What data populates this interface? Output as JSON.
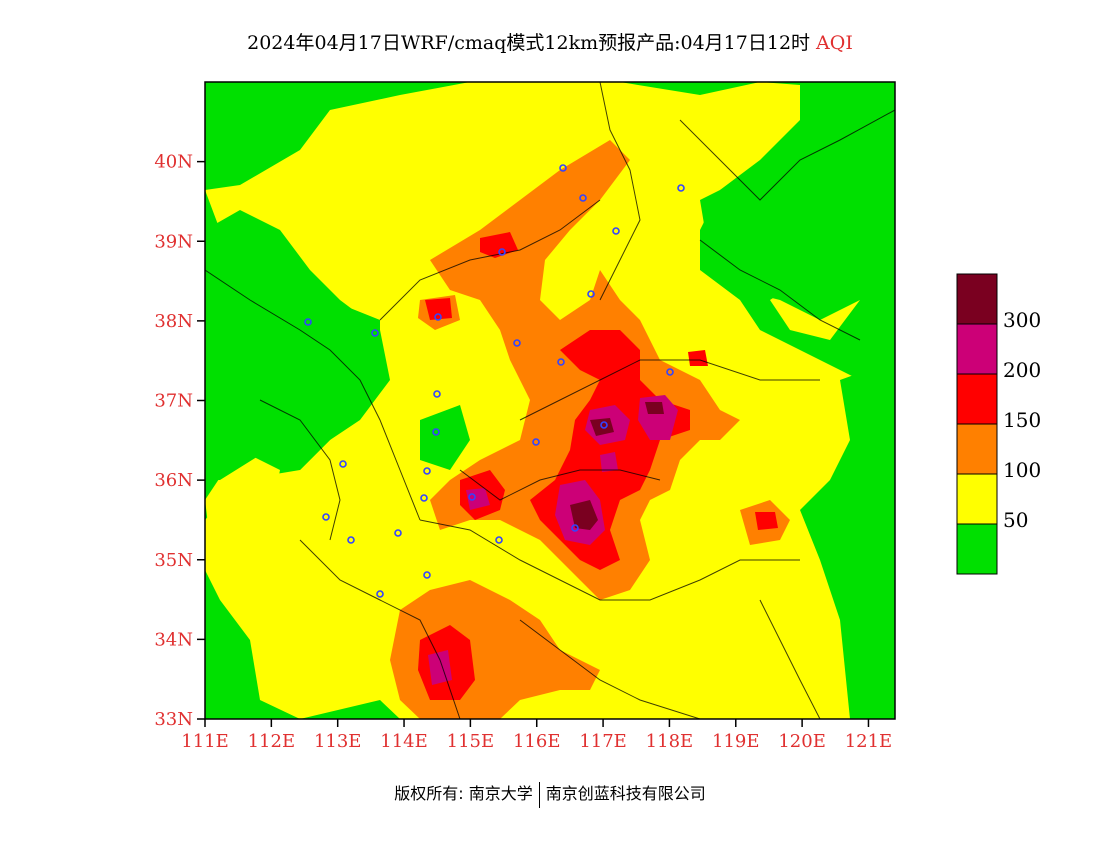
{
  "header": {
    "title": "2024年04月17日WRF/cmaq模式12km预报产品:04月17日12时",
    "variable": "AQI"
  },
  "map": {
    "lat_ticks": [
      "40N",
      "39N",
      "38N",
      "37N",
      "36N",
      "35N",
      "34N",
      "33N"
    ],
    "lon_ticks": [
      "111E",
      "112E",
      "113E",
      "114E",
      "115E",
      "116E",
      "117E",
      "118E",
      "119E",
      "120E",
      "121E"
    ],
    "lat_range": [
      33,
      41
    ],
    "lon_range": [
      111,
      121.4
    ]
  },
  "legend": {
    "labels": [
      "300",
      "200",
      "150",
      "100",
      "50"
    ],
    "colors": [
      "#7a0020",
      "#cc0077",
      "#ff0000",
      "#ff8000",
      "#ffff00",
      "#00e000"
    ]
  },
  "footer": {
    "copyright": "版权所有: 南京大学",
    "company": "南京创蓝科技有限公司"
  }
}
